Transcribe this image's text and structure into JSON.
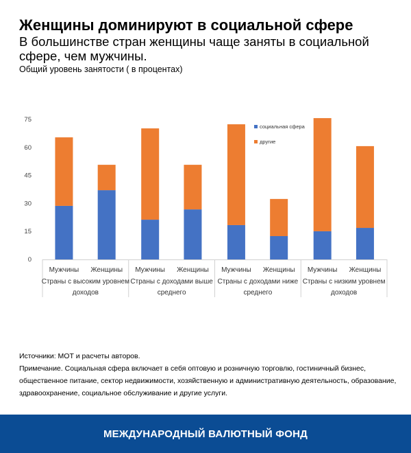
{
  "title": "Женщины доминируют в социальной сфере",
  "subtitle": "В большинстве стран женщины чаще заняты в социальной сфере, чем мужчины.",
  "unit_note": "Общий уровень занятости ( в процентах)",
  "chart_data": {
    "type": "bar",
    "stacked": true,
    "ylim": [
      0,
      75
    ],
    "yticks": [
      "0",
      "15",
      "30",
      "45",
      "60",
      "75"
    ],
    "grid": false,
    "legend_position": "top-right",
    "groups": [
      {
        "label": "Страны с высоким уровнем доходов",
        "categories": [
          "Мужчины",
          "Женщины"
        ]
      },
      {
        "label": "Страны с доходами выше среднего",
        "categories": [
          "Мужчины",
          "Женщины"
        ]
      },
      {
        "label": "Страны с доходами ниже среднего",
        "categories": [
          "Мужчины",
          "Женщины"
        ]
      },
      {
        "label": "Страны с низким уровнем доходов",
        "categories": [
          "Мужчины",
          "Женщины"
        ]
      }
    ],
    "series": [
      {
        "name": "социальная сфера",
        "color": "#4472c4",
        "values": [
          28.7,
          37.1,
          21.3,
          26.8,
          18.4,
          12.5,
          15.1,
          16.9
        ]
      },
      {
        "name": "другие",
        "color": "#ed7d31",
        "values": [
          36.7,
          13.6,
          48.9,
          23.9,
          54.0,
          19.9,
          60.6,
          43.8
        ]
      }
    ]
  },
  "notes": {
    "sources": "Источники: МОТ и расчеты авторов.",
    "note": "Примечание. Социальная сфера включает в себя оптовую и розничную торговлю, гостиничный бизнес, общественное питание, сектор недвижимости, хозяйственную и административную деятельность, образование, здравоохранение, социальное обслуживание и другие услуги."
  },
  "footer": "МЕЖДУНАРОДНЫЙ ВАЛЮТНЫЙ ФОНД"
}
